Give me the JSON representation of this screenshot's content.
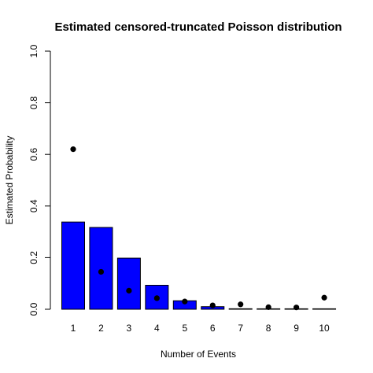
{
  "chart_data": {
    "type": "bar",
    "title": "Estimated censored-truncated Poisson distribution",
    "xlabel": "Number of Events",
    "ylabel": "Estimated Probability",
    "ylim": [
      0,
      1.0
    ],
    "yticks": [
      "0.0",
      "0.2",
      "0.4",
      "0.6",
      "0.8",
      "1.0"
    ],
    "categories": [
      "1",
      "2",
      "3",
      "4",
      "5",
      "6",
      "7",
      "8",
      "9",
      "10"
    ],
    "series": [
      {
        "type": "bar",
        "values": [
          0.338,
          0.317,
          0.198,
          0.093,
          0.033,
          0.01,
          0.002,
          0.001,
          0.0003,
          0.0001
        ],
        "color": "#0000ff"
      },
      {
        "type": "scatter",
        "values": [
          0.62,
          0.145,
          0.072,
          0.043,
          0.03,
          0.015,
          0.019,
          0.008,
          0.007,
          0.045
        ],
        "color": "#000000"
      }
    ],
    "grid": false
  }
}
